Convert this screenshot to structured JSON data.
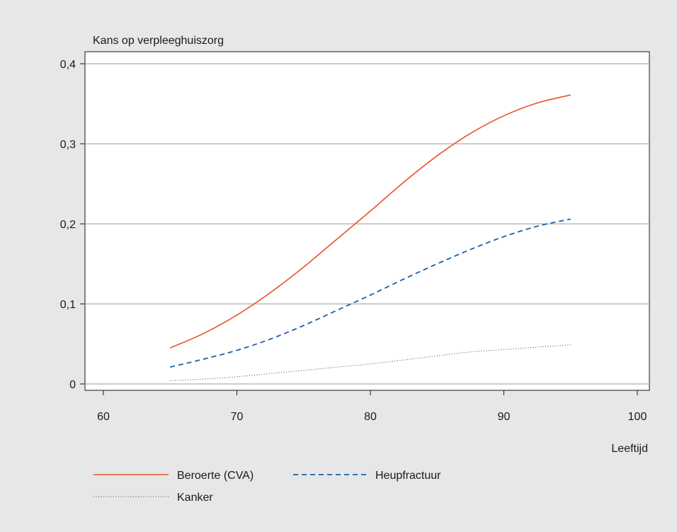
{
  "chart_data": {
    "type": "line",
    "ylabel": "Kans op verpleeghuiszorg",
    "xlabel": "Leeftijd",
    "xlim": [
      60,
      100
    ],
    "ylim": [
      0,
      0.4
    ],
    "x_ticks": [
      60,
      70,
      80,
      90,
      100
    ],
    "y_ticks": [
      0,
      0.1,
      0.2,
      0.3,
      0.4
    ],
    "x_tick_labels": [
      "60",
      "70",
      "80",
      "90",
      "100"
    ],
    "y_tick_labels": [
      "0",
      "0,1",
      "0,2",
      "0,3",
      "0,4"
    ],
    "grid": "horizontal",
    "legend_position": "bottom",
    "x": [
      65,
      67.5,
      70,
      72.5,
      75,
      77.5,
      80,
      82.5,
      85,
      87.5,
      90,
      92.5,
      95
    ],
    "series": [
      {
        "name": "Beroerte (CVA)",
        "color": "#e8532b",
        "style": "solid",
        "values": [
          0.045,
          0.063,
          0.086,
          0.114,
          0.146,
          0.181,
          0.216,
          0.252,
          0.285,
          0.313,
          0.335,
          0.351,
          0.361
        ]
      },
      {
        "name": "Heupfractuur",
        "color": "#1e5fa3",
        "style": "dashed",
        "values": [
          0.021,
          0.031,
          0.042,
          0.056,
          0.073,
          0.092,
          0.111,
          0.131,
          0.15,
          0.168,
          0.184,
          0.197,
          0.206
        ]
      },
      {
        "name": "Kanker",
        "color": "#444444",
        "style": "dotted",
        "values": [
          0.004,
          0.006,
          0.009,
          0.013,
          0.017,
          0.021,
          0.025,
          0.03,
          0.035,
          0.04,
          0.043,
          0.046,
          0.049
        ]
      }
    ]
  }
}
